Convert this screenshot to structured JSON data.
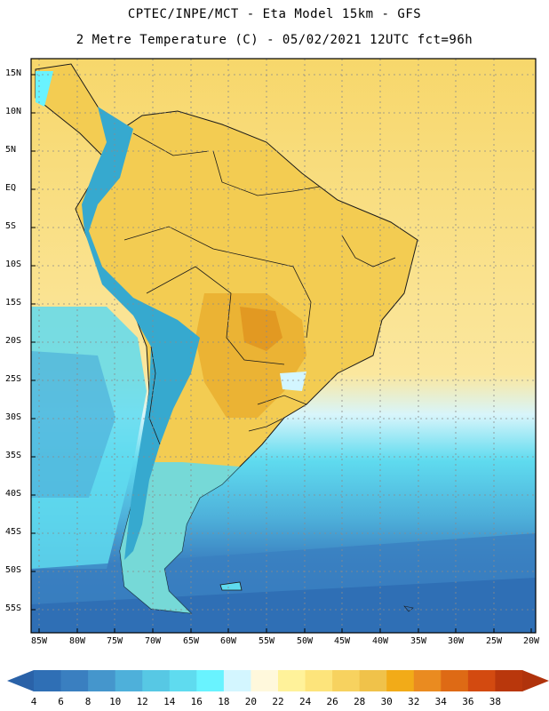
{
  "header": {
    "title_line1": "CPTEC/INPE/MCT -  Eta Model 15km - GFS",
    "title_line2": "2 Metre Temperature (C) - 05/02/2021 12UTC fct=96h"
  },
  "map": {
    "lat_labels": [
      "15N",
      "10N",
      "5N",
      "EQ",
      "5S",
      "10S",
      "15S",
      "20S",
      "25S",
      "30S",
      "35S",
      "40S",
      "45S",
      "50S",
      "55S"
    ],
    "lon_labels": [
      "85W",
      "80W",
      "75W",
      "70W",
      "65W",
      "60W",
      "55W",
      "50W",
      "45W",
      "40W",
      "35W",
      "30W",
      "25W",
      "20W"
    ],
    "ocean_color": "#f8d86a",
    "land_color": "#f3cc52",
    "hot_core_color": "#e9ae2f",
    "andes_color": "#36a9cf"
  },
  "colorbar": {
    "labels": [
      "4",
      "6",
      "8",
      "10",
      "12",
      "14",
      "16",
      "18",
      "20",
      "22",
      "24",
      "26",
      "28",
      "30",
      "32",
      "34",
      "36",
      "38"
    ],
    "colors": [
      "#2f6fb5",
      "#3a7fc0",
      "#4596cc",
      "#4eb0da",
      "#57c8e4",
      "#5fdbef",
      "#69f3ff",
      "#d3f6ff",
      "#fff8dc",
      "#fff29a",
      "#fde47b",
      "#f7d25f",
      "#f0c24a",
      "#f2ab18",
      "#ea8b20",
      "#de6a15",
      "#d34a10",
      "#b9370c"
    ],
    "left_arrow_color": "#2a62a8",
    "right_arrow_color": "#b0330c"
  }
}
